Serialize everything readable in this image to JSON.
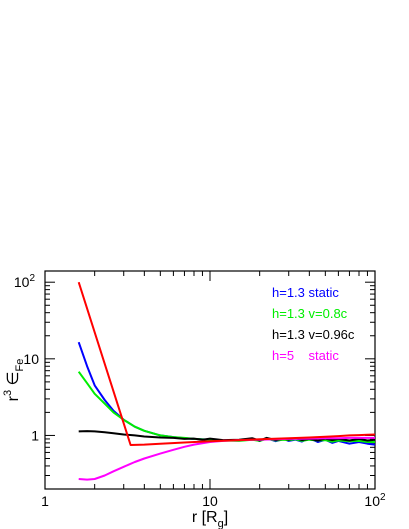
{
  "chart_data": {
    "type": "line",
    "xlabel": "r [R",
    "xlabel_sub": "g",
    "xlabel_end": "]",
    "ylabel_base": "r",
    "ylabel_sup": "3",
    "ylabel_main": " ∈",
    "ylabel_sub": "Fe",
    "xscale": "log",
    "yscale": "log",
    "xlim": [
      1,
      100
    ],
    "ylim": [
      0.2,
      140
    ],
    "xticks": [
      {
        "value": 1,
        "label": "1",
        "sup": ""
      },
      {
        "value": 10,
        "label": "10",
        "sup": ""
      },
      {
        "value": 100,
        "label": "10",
        "sup": "2"
      }
    ],
    "yticks": [
      {
        "value": 1,
        "label": "1",
        "sup": ""
      },
      {
        "value": 10,
        "label": "10",
        "sup": ""
      },
      {
        "value": 100,
        "label": "10",
        "sup": "2"
      }
    ],
    "legend_position": "top-right",
    "grid": false,
    "series": [
      {
        "name": "h=1.3 static",
        "color": "#0000ff",
        "x": [
          1.6,
          1.8,
          2.0,
          2.3,
          2.6,
          3.0,
          3.5,
          4.0,
          5.0,
          6.0,
          7.0,
          8.0,
          10,
          12,
          15,
          18,
          20,
          22,
          25,
          28,
          30,
          33,
          36,
          40,
          45,
          50,
          55,
          60,
          70,
          80,
          90,
          100
        ],
        "values": [
          16.5,
          8.0,
          4.5,
          2.9,
          2.1,
          1.6,
          1.3,
          1.15,
          1.0,
          0.95,
          0.92,
          0.9,
          0.88,
          0.86,
          0.86,
          0.9,
          0.85,
          0.92,
          0.84,
          0.9,
          0.85,
          0.88,
          0.83,
          0.92,
          0.82,
          0.88,
          0.8,
          0.85,
          0.78,
          0.82,
          0.78,
          0.76
        ]
      },
      {
        "name": "h=1.3 v=0.8c",
        "color": "#00ee00",
        "x": [
          1.6,
          1.8,
          2.0,
          2.3,
          2.6,
          3.0,
          3.5,
          4.0,
          5.0,
          6.0,
          7.0,
          8.0,
          10,
          12,
          15,
          18,
          20,
          22,
          25,
          28,
          30,
          33,
          36,
          40,
          45,
          50,
          55,
          60,
          70,
          80,
          90,
          100
        ],
        "values": [
          6.8,
          4.8,
          3.5,
          2.6,
          2.0,
          1.6,
          1.3,
          1.15,
          1.0,
          0.95,
          0.93,
          0.9,
          0.88,
          0.86,
          0.85,
          0.88,
          0.85,
          0.9,
          0.86,
          0.88,
          0.87,
          0.89,
          0.85,
          0.88,
          0.86,
          0.87,
          0.83,
          0.86,
          0.84,
          0.85,
          0.82,
          0.82
        ]
      },
      {
        "name": "h=1.3 v=0.96c",
        "color": "#000000",
        "x": [
          1.6,
          1.8,
          2.0,
          2.3,
          2.6,
          3.0,
          3.5,
          4.0,
          5.0,
          6.0,
          7.0,
          8.0,
          9.0,
          10,
          12,
          15,
          18,
          20,
          22,
          25,
          28,
          30,
          33,
          36,
          40,
          45,
          50,
          55,
          60,
          70,
          80,
          90,
          100
        ],
        "values": [
          1.13,
          1.14,
          1.13,
          1.1,
          1.07,
          1.03,
          1.0,
          0.97,
          0.94,
          0.93,
          0.9,
          0.91,
          0.88,
          0.91,
          0.87,
          0.88,
          0.92,
          0.86,
          0.93,
          0.87,
          0.91,
          0.88,
          0.92,
          0.87,
          0.9,
          0.86,
          0.91,
          0.87,
          0.9,
          0.86,
          0.9,
          0.86,
          0.88
        ]
      },
      {
        "name": "h=5    static",
        "color": "#ff00ff",
        "x": [
          1.6,
          1.8,
          2.0,
          2.3,
          2.6,
          3.0,
          3.5,
          4.0,
          5.0,
          6.0,
          7.0,
          8.0,
          10,
          12,
          15,
          20,
          25,
          30,
          40,
          50,
          60,
          70,
          80,
          90,
          100
        ],
        "values": [
          0.27,
          0.265,
          0.27,
          0.3,
          0.34,
          0.39,
          0.45,
          0.5,
          0.58,
          0.65,
          0.71,
          0.76,
          0.82,
          0.85,
          0.87,
          0.88,
          0.89,
          0.9,
          0.91,
          0.92,
          0.92,
          0.93,
          0.93,
          0.93,
          0.93
        ]
      },
      {
        "name": "",
        "color": "#ff0000",
        "x": [
          1.6,
          3.3,
          4.0,
          5.0,
          7.0,
          10,
          15,
          20,
          30,
          40,
          50,
          60,
          70,
          80,
          90,
          100
        ],
        "values": [
          100,
          0.75,
          0.76,
          0.78,
          0.81,
          0.84,
          0.87,
          0.89,
          0.92,
          0.94,
          0.96,
          0.98,
          1.0,
          1.01,
          1.02,
          1.03
        ]
      }
    ]
  }
}
